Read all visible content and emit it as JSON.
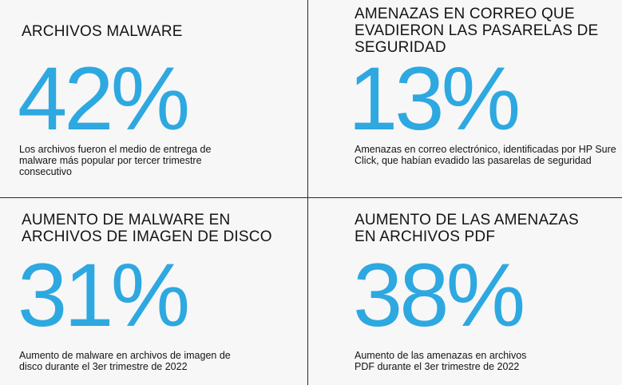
{
  "cards": [
    {
      "title": "ARCHIVOS MALWARE",
      "value": "42%",
      "description": "Los archivos fueron el medio de entrega de malware más popular por tercer trimestre consecutivo"
    },
    {
      "title_lines": [
        "AMENAZAS EN CORREO QUE",
        "EVADIERON LAS PASARELAS DE",
        "SEGURIDAD"
      ],
      "value": "13%",
      "description": "Amenazas en correo electrónico, identificadas por HP Sure Click, que habían evadido las pasarelas de seguridad"
    },
    {
      "title_lines": [
        "AUMENTO DE MALWARE EN",
        "ARCHIVOS DE IMAGEN DE DISCO"
      ],
      "value": "31%",
      "description_lines": [
        "Aumento de malware en archivos de imagen de",
        "disco durante el 3er trimestre de 2022"
      ]
    },
    {
      "title_lines": [
        "AUMENTO DE LAS AMENAZAS",
        "EN ARCHIVOS PDF"
      ],
      "value": "38%",
      "description_lines": [
        "Aumento de las amenazas en archivos",
        "PDF durante el 3er trimestre de 2022"
      ]
    }
  ],
  "colors": {
    "accent": "#2ea8e0",
    "text": "#141414",
    "background": "#f7f7f7",
    "divider": "#2b2b2b"
  }
}
